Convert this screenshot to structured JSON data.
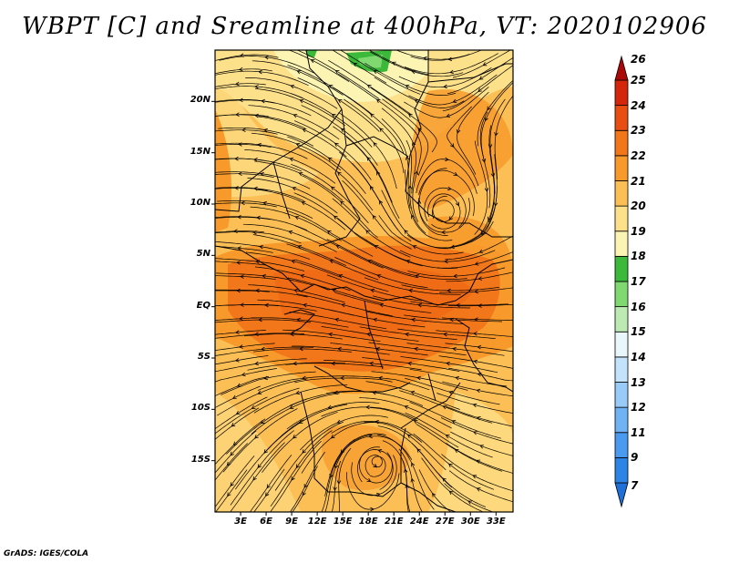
{
  "title": "WBPT [C] and Sreamline at 400hPa, VT: 2020102906",
  "footer": "GrADS: IGES/COLA",
  "map": {
    "lon_range": [
      0,
      35
    ],
    "lat_range": [
      -20,
      25
    ],
    "lat_ticks": [
      {
        "value": 20,
        "label": "20N"
      },
      {
        "value": 15,
        "label": "15N"
      },
      {
        "value": 10,
        "label": "10N"
      },
      {
        "value": 5,
        "label": "5N"
      },
      {
        "value": 0,
        "label": "EQ"
      },
      {
        "value": -5,
        "label": "5S"
      },
      {
        "value": -10,
        "label": "10S"
      },
      {
        "value": -15,
        "label": "15S"
      }
    ],
    "lon_ticks": [
      {
        "value": 3,
        "label": "3E"
      },
      {
        "value": 6,
        "label": "6E"
      },
      {
        "value": 9,
        "label": "9E"
      },
      {
        "value": 12,
        "label": "12E"
      },
      {
        "value": 15,
        "label": "15E"
      },
      {
        "value": 18,
        "label": "18E"
      },
      {
        "value": 21,
        "label": "21E"
      },
      {
        "value": 24,
        "label": "24E"
      },
      {
        "value": 27,
        "label": "27E"
      },
      {
        "value": 30,
        "label": "30E"
      },
      {
        "value": 33,
        "label": "33E"
      }
    ],
    "features": [
      {
        "name": "north-light-zone",
        "level": 19
      },
      {
        "name": "equatorial-warm-band",
        "level": 23
      },
      {
        "name": "cyclonic-vortex-east",
        "lon": 27,
        "lat": 9
      },
      {
        "name": "cyclonic-vortex-south",
        "lon": 19,
        "lat": -15
      },
      {
        "name": "green-patch-north",
        "lon": 17,
        "lat": 24.5,
        "level": 17
      }
    ]
  },
  "colorbar": {
    "levels": [
      "7",
      "9",
      "11",
      "12",
      "13",
      "14",
      "15",
      "16",
      "17",
      "18",
      "19",
      "20",
      "21",
      "22",
      "23",
      "24",
      "25",
      "26"
    ],
    "colors": [
      "#1e6fd8",
      "#2c84e6",
      "#4a9bf0",
      "#6fb3f4",
      "#98cbf7",
      "#c4e2fa",
      "#e9f6fb",
      "#bdeab3",
      "#7fd870",
      "#3cb83a",
      "#fbf4b2",
      "#fde08a",
      "#fbbf55",
      "#f79a2b",
      "#f2761a",
      "#e84e12",
      "#d4260b",
      "#aa0808"
    ]
  }
}
